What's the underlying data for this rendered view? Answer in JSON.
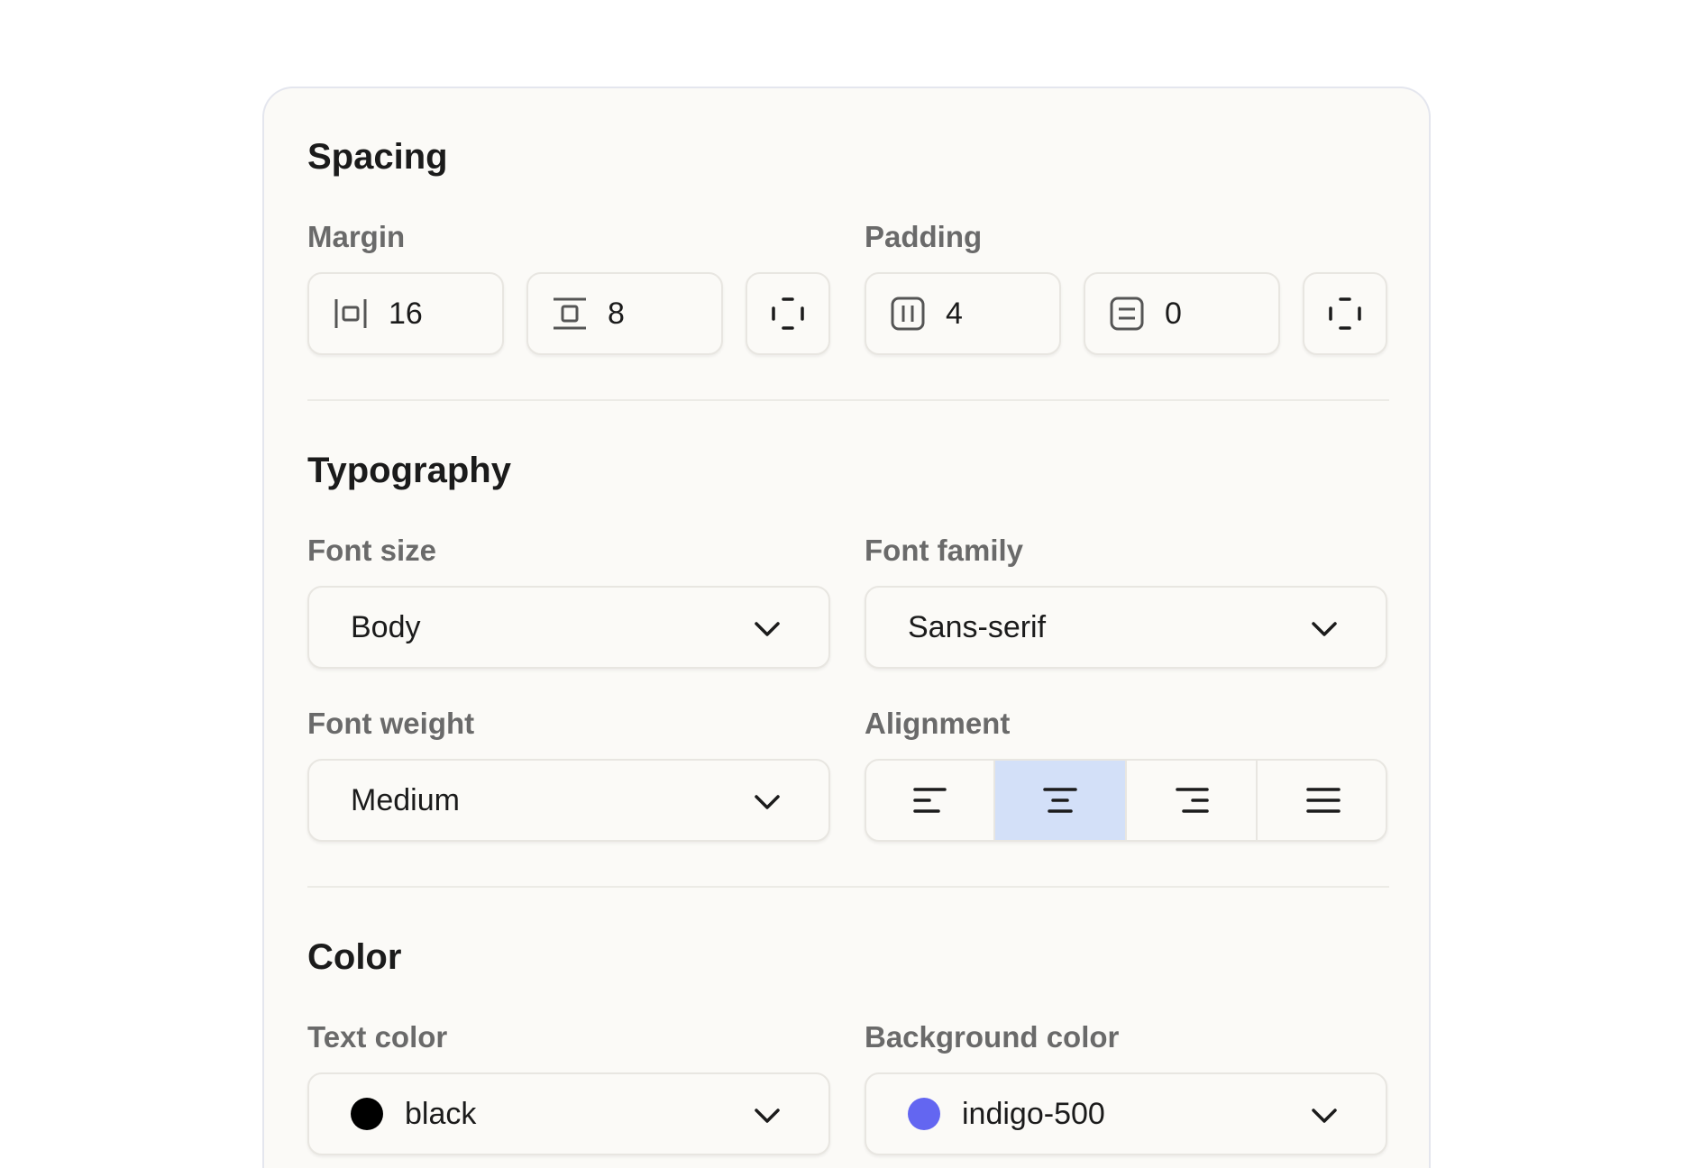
{
  "spacing": {
    "title": "Spacing",
    "margin": {
      "label": "Margin",
      "horizontal": "16",
      "vertical": "8"
    },
    "padding": {
      "label": "Padding",
      "horizontal": "4",
      "vertical": "0"
    }
  },
  "typography": {
    "title": "Typography",
    "font_size": {
      "label": "Font size",
      "value": "Body"
    },
    "font_family": {
      "label": "Font family",
      "value": "Sans-serif"
    },
    "font_weight": {
      "label": "Font weight",
      "value": "Medium"
    },
    "alignment": {
      "label": "Alignment",
      "options": [
        "left",
        "center",
        "right",
        "justify"
      ],
      "selected": "center"
    }
  },
  "color": {
    "title": "Color",
    "text_color": {
      "label": "Text color",
      "value": "black",
      "swatch": "#000000"
    },
    "background_color": {
      "label": "Background color",
      "value": "indigo-500",
      "swatch": "#6366f1"
    }
  },
  "colors": {
    "selected_segment": "#d3e0f8"
  }
}
